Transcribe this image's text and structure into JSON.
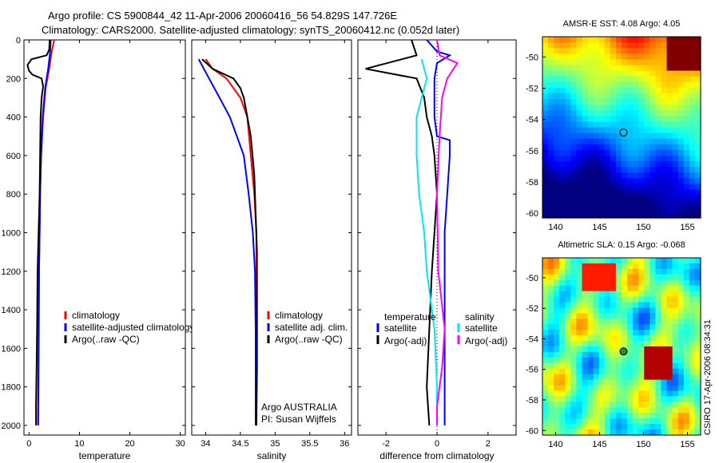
{
  "header": {
    "line1": "Argo profile: CS 5900844_42 11-Apr-2006 20060416_56 54.829S 147.726E",
    "line2": "Climatology: CARS2000. Satellite-adjusted climatology: synTS_20060412.nc (0.052d later)"
  },
  "colors": {
    "climatology": "#ff0000",
    "satellite": "#0000ff",
    "argo": "#000000",
    "cyan": "#00e5ff",
    "magenta": "#ff00ff"
  },
  "chart_data": [
    {
      "type": "line",
      "xlabel": "temperature",
      "xlim": [
        -1,
        31
      ],
      "xticks": [
        0,
        10,
        20,
        30
      ],
      "ylim": [
        0,
        2050
      ],
      "yticks": [
        0,
        200,
        400,
        600,
        800,
        1000,
        1200,
        1400,
        1600,
        1800,
        2000
      ],
      "y_inverted": true,
      "legend": [
        "climatology",
        "satellite-adjusted climatology",
        "Argo(..raw -QC)"
      ],
      "series": [
        {
          "name": "climatology",
          "color": "climatology",
          "points": [
            [
              5,
              0
            ],
            [
              4.5,
              60
            ],
            [
              4,
              150
            ],
            [
              3.3,
              250
            ],
            [
              2.8,
              400
            ],
            [
              2.4,
              600
            ],
            [
              2.2,
              800
            ],
            [
              2.1,
              1000
            ],
            [
              2,
              1200
            ],
            [
              1.9,
              1500
            ],
            [
              1.85,
              1700
            ],
            [
              1.8,
              1900
            ],
            [
              1.8,
              2000
            ]
          ]
        },
        {
          "name": "satellite-adjusted climatology",
          "color": "satellite",
          "points": [
            [
              4.3,
              0
            ],
            [
              4.2,
              60
            ],
            [
              3.8,
              150
            ],
            [
              3.2,
              250
            ],
            [
              2.7,
              400
            ],
            [
              2.4,
              600
            ],
            [
              2.2,
              800
            ],
            [
              2.1,
              1000
            ],
            [
              2,
              1200
            ],
            [
              1.95,
              1500
            ],
            [
              1.9,
              1700
            ],
            [
              1.85,
              1900
            ],
            [
              1.8,
              2000
            ]
          ]
        },
        {
          "name": "Argo(..raw -QC)",
          "color": "argo",
          "points": [
            [
              4.1,
              0
            ],
            [
              4,
              50
            ],
            [
              3.5,
              80
            ],
            [
              0.5,
              100
            ],
            [
              -0.3,
              130
            ],
            [
              0,
              160
            ],
            [
              0.7,
              180
            ],
            [
              2.5,
              200
            ],
            [
              2.8,
              240
            ],
            [
              2.5,
              300
            ],
            [
              2.3,
              400
            ],
            [
              2.2,
              600
            ],
            [
              2.1,
              800
            ],
            [
              1.9,
              1000
            ],
            [
              1.7,
              1200
            ],
            [
              1.6,
              1500
            ],
            [
              1.5,
              1700
            ],
            [
              1.4,
              1900
            ],
            [
              1.4,
              2000
            ]
          ]
        }
      ]
    },
    {
      "type": "line",
      "xlabel": "salinity",
      "xlim": [
        33.8,
        36.1
      ],
      "xticks": [
        34,
        34.5,
        35,
        35.5,
        36
      ],
      "ylim": [
        0,
        2050
      ],
      "y_inverted": true,
      "legend": [
        "climatology",
        "satellite adj. clim.",
        "Argo(..raw -QC)"
      ],
      "annotation": [
        "Argo AUSTRALIA",
        "PI: Susan Wijffels"
      ],
      "series": [
        {
          "name": "climatology",
          "color": "climatology",
          "points": [
            [
              34.0,
              100
            ],
            [
              34.1,
              150
            ],
            [
              34.3,
              200
            ],
            [
              34.5,
              300
            ],
            [
              34.6,
              400
            ],
            [
              34.65,
              600
            ],
            [
              34.7,
              800
            ],
            [
              34.73,
              1000
            ],
            [
              34.73,
              1200
            ],
            [
              34.73,
              1500
            ],
            [
              34.73,
              1800
            ],
            [
              34.73,
              2000
            ]
          ]
        },
        {
          "name": "satellite adj. clim.",
          "color": "satellite",
          "points": [
            [
              33.9,
              100
            ],
            [
              34.05,
              200
            ],
            [
              34.2,
              300
            ],
            [
              34.35,
              400
            ],
            [
              34.45,
              500
            ],
            [
              34.55,
              600
            ],
            [
              34.62,
              800
            ],
            [
              34.68,
              1000
            ],
            [
              34.71,
              1200
            ],
            [
              34.72,
              1500
            ],
            [
              34.72,
              1800
            ],
            [
              34.72,
              2000
            ]
          ]
        },
        {
          "name": "Argo(..raw -QC)",
          "color": "argo",
          "points": [
            [
              33.95,
              100
            ],
            [
              34.1,
              150
            ],
            [
              34.4,
              200
            ],
            [
              34.5,
              250
            ],
            [
              34.55,
              300
            ],
            [
              34.6,
              400
            ],
            [
              34.65,
              500
            ],
            [
              34.7,
              700
            ],
            [
              34.72,
              900
            ],
            [
              34.74,
              1100
            ],
            [
              34.74,
              1400
            ],
            [
              34.74,
              1700
            ],
            [
              34.73,
              2000
            ]
          ]
        }
      ]
    },
    {
      "type": "line",
      "xlabel": "difference from climatology",
      "xlim": [
        -3.1,
        3.1
      ],
      "xticks": [
        -2,
        0,
        2
      ],
      "ylim": [
        0,
        2050
      ],
      "y_inverted": true,
      "legend": {
        "temperature": [
          "satellite",
          "Argo(-adj)"
        ],
        "salinity": [
          "satellite",
          "Argo(-adj)"
        ]
      },
      "series": [
        {
          "name": "satellite",
          "color": "satellite",
          "points": [
            [
              -0.4,
              0
            ],
            [
              0,
              60
            ],
            [
              0.5,
              80
            ],
            [
              0,
              120
            ],
            [
              -0.1,
              200
            ],
            [
              -0.1,
              300
            ],
            [
              -0.1,
              400
            ],
            [
              0,
              500
            ],
            [
              0.5,
              520
            ],
            [
              0.5,
              600
            ],
            [
              0.4,
              800
            ],
            [
              0.3,
              1000
            ],
            [
              0.3,
              1200
            ],
            [
              0.3,
              1500
            ],
            [
              0.3,
              1800
            ],
            [
              0.3,
              2000
            ]
          ]
        },
        {
          "name": "Argo(-adj)",
          "color": "argo",
          "points": [
            [
              -1,
              0
            ],
            [
              -0.8,
              80
            ],
            [
              -2.8,
              150
            ],
            [
              -0.8,
              200
            ],
            [
              -0.5,
              300
            ],
            [
              -0.4,
              400
            ],
            [
              -0.2,
              500
            ],
            [
              -0.1,
              600
            ],
            [
              0,
              800
            ],
            [
              -0.1,
              1000
            ],
            [
              -0.2,
              1200
            ],
            [
              -0.3,
              1500
            ],
            [
              -0.4,
              1800
            ],
            [
              -0.3,
              2000
            ]
          ]
        },
        {
          "name": "satellite",
          "color": "cyan",
          "points": [
            [
              -0.6,
              100
            ],
            [
              -0.4,
              200
            ],
            [
              -0.8,
              400
            ],
            [
              -0.8,
              600
            ],
            [
              -0.7,
              800
            ],
            [
              -0.5,
              1000
            ],
            [
              -0.4,
              1200
            ],
            [
              -0.1,
              1500
            ],
            [
              0,
              1800
            ],
            [
              0,
              2000
            ]
          ]
        },
        {
          "name": "Argo(-adj)",
          "color": "magenta",
          "points": [
            [
              0,
              0
            ],
            [
              0.1,
              80
            ],
            [
              0.8,
              120
            ],
            [
              0.4,
              200
            ],
            [
              0.2,
              300
            ],
            [
              0.1,
              500
            ],
            [
              0,
              800
            ],
            [
              0.05,
              1200
            ],
            [
              0.3,
              1500
            ],
            [
              0.2,
              1700
            ],
            [
              0,
              1900
            ],
            [
              0,
              2000
            ]
          ]
        }
      ]
    },
    {
      "type": "heatmap",
      "title": "AMSR-E SST: 4.08 Argo: 4.05",
      "xlim": [
        138.5,
        156.5
      ],
      "xticks": [
        140,
        145,
        150,
        155
      ],
      "ylim": [
        -60.3,
        -48.7
      ],
      "yticks": [
        -50,
        -52,
        -54,
        -56,
        -58,
        -60
      ],
      "marker": [
        147.726,
        -54.829
      ]
    },
    {
      "type": "heatmap",
      "title": "Altimetric SLA: 0.15 Argo: -0.068",
      "xlim": [
        138.5,
        156.5
      ],
      "xticks": [
        140,
        145,
        150,
        155
      ],
      "ylim": [
        -60.3,
        -48.7
      ],
      "yticks": [
        -50,
        -52,
        -54,
        -56,
        -58,
        -60
      ],
      "marker": [
        147.726,
        -54.829
      ]
    }
  ],
  "footer_stamp": "CSIRO 17-Apr-2006 08:34:31"
}
